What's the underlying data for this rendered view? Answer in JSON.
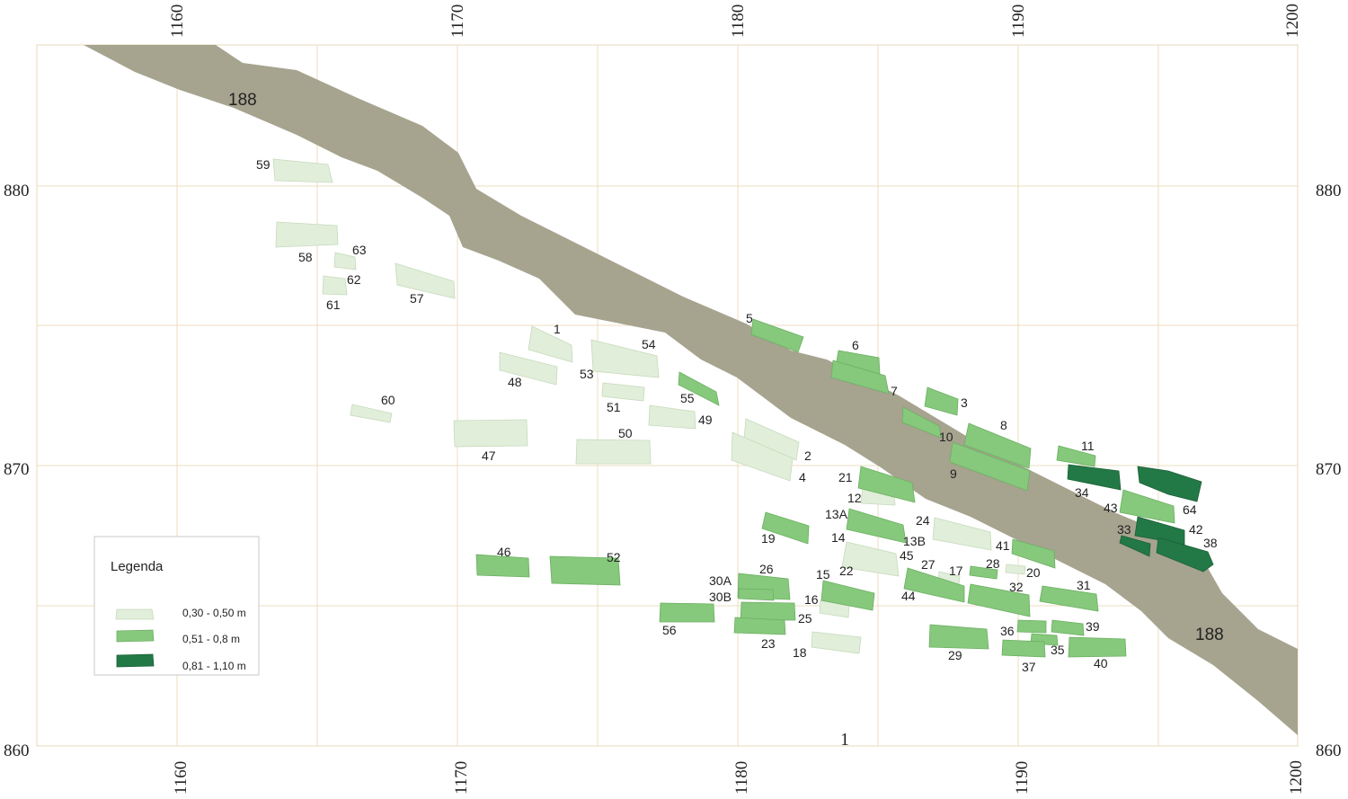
{
  "map": {
    "x_ticks": [
      "1160",
      "1170",
      "1180",
      "1190",
      "1200"
    ],
    "y_ticks": [
      "880",
      "870",
      "860"
    ],
    "trench_labels": [
      "188",
      "188"
    ],
    "sheet_label": "1"
  },
  "legend": {
    "title": "Legenda",
    "items": [
      {
        "label": "0,30 - 0,50 m",
        "color": "#e1eed9"
      },
      {
        "label": "0,51 - 0,8 m",
        "color": "#86c87c"
      },
      {
        "label": "0,81 - 1,10 m",
        "color": "#237946"
      }
    ]
  },
  "features": {
    "f1": "1",
    "f2": "2",
    "f3": "3",
    "f4": "4",
    "f5": "5",
    "f6": "6",
    "f7": "7",
    "f8": "8",
    "f9": "9",
    "f10": "10",
    "f11": "11",
    "f12": "12",
    "f13a": "13A",
    "f13b": "13B",
    "f14": "14",
    "f15": "15",
    "f16": "16",
    "f17": "17",
    "f18": "18",
    "f19": "19",
    "f20": "20",
    "f21": "21",
    "f22": "22",
    "f23": "23",
    "f24": "24",
    "f25": "25",
    "f26": "26",
    "f27": "27",
    "f28": "28",
    "f29": "29",
    "f30a": "30A",
    "f30b": "30B",
    "f31": "31",
    "f32": "32",
    "f33": "33",
    "f34": "34",
    "f35": "35",
    "f36": "36",
    "f37": "37",
    "f38": "38",
    "f39": "39",
    "f40": "40",
    "f41": "41",
    "f42": "42",
    "f43": "43",
    "f44": "44",
    "f45": "45",
    "f46": "46",
    "f47": "47",
    "f48": "48",
    "f49": "49",
    "f50": "50",
    "f51": "51",
    "f52": "52",
    "f53": "53",
    "f54": "54",
    "f55": "55",
    "f56": "56",
    "f57": "57",
    "f58": "58",
    "f59": "59",
    "f60": "60",
    "f61": "61",
    "f62": "62",
    "f63": "63",
    "f64": "64"
  }
}
